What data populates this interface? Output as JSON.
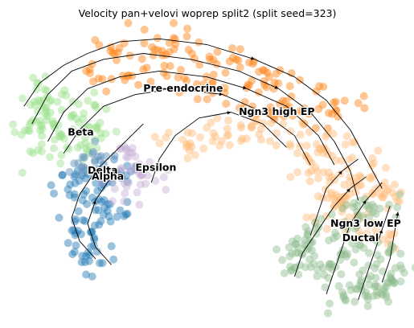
{
  "chart_data": {
    "type": "scatter",
    "title": "Velocity pan+velovi woprep split2 (split seed=323)",
    "xlabel": "",
    "ylabel": "",
    "axes_visible": false,
    "grid": false,
    "legend": "on-data labels",
    "overlay": "velocity streamlines with arrowheads",
    "x_range": [
      0,
      100
    ],
    "y_range": [
      0,
      100
    ],
    "clusters": [
      {
        "label": "Pre-endocrine",
        "color": "#ff7f0e",
        "centers": [
          [
            30,
            93
          ],
          [
            42,
            91
          ],
          [
            55,
            88
          ],
          [
            65,
            82
          ],
          [
            48,
            80
          ],
          [
            58,
            74
          ],
          [
            70,
            72
          ],
          [
            38,
            85
          ],
          [
            25,
            84
          ],
          [
            80,
            70
          ]
        ],
        "spread": 6,
        "count": 160
      },
      {
        "label": "Ngn3 high EP",
        "color": "#ffbb78",
        "centers": [
          [
            62,
            65
          ],
          [
            72,
            62
          ],
          [
            80,
            58
          ],
          [
            88,
            52
          ],
          [
            90,
            44
          ],
          [
            82,
            48
          ],
          [
            52,
            62
          ],
          [
            42,
            58
          ],
          [
            95,
            40
          ],
          [
            75,
            52
          ]
        ],
        "spread": 5.5,
        "count": 150
      },
      {
        "label": "Beta",
        "color": "#aec7e8",
        "centers": [
          [
            2,
            0
          ],
          [
            0,
            0
          ]
        ],
        "spread": 0,
        "count": 0
      },
      {
        "label": "Beta",
        "color": "#98df8a",
        "centers": [
          [
            8,
            75
          ],
          [
            12,
            68
          ],
          [
            16,
            62
          ],
          [
            10,
            58
          ],
          [
            18,
            72
          ],
          [
            22,
            64
          ],
          [
            6,
            66
          ]
        ],
        "spread": 5,
        "count": 110
      },
      {
        "label": "Alpha",
        "color": "#1f77b4",
        "centers": [
          [
            16,
            45
          ],
          [
            20,
            40
          ],
          [
            24,
            48
          ],
          [
            18,
            30
          ],
          [
            22,
            25
          ],
          [
            26,
            36
          ],
          [
            20,
            18
          ],
          [
            28,
            50
          ]
        ],
        "spread": 4.5,
        "count": 110
      },
      {
        "label": "Delta",
        "color": "#5b8fb9",
        "centers": [
          [
            18,
            52
          ],
          [
            22,
            55
          ]
        ],
        "spread": 3,
        "count": 20
      },
      {
        "label": "Epsilon",
        "color": "#c5b0d5",
        "centers": [
          [
            32,
            50
          ],
          [
            36,
            46
          ],
          [
            30,
            56
          ],
          [
            28,
            42
          ]
        ],
        "spread": 3.5,
        "count": 40
      },
      {
        "label": "Ngn3 low EP",
        "color": "#ffbb78",
        "centers": [
          [
            80,
            34
          ],
          [
            88,
            30
          ],
          [
            95,
            28
          ],
          [
            84,
            40
          ]
        ],
        "spread": 4,
        "count": 50
      },
      {
        "label": "Ductal",
        "color": "#8fbc8f",
        "centers": [
          [
            74,
            24
          ],
          [
            80,
            16
          ],
          [
            88,
            12
          ],
          [
            94,
            22
          ],
          [
            86,
            24
          ],
          [
            78,
            30
          ],
          [
            92,
            8
          ],
          [
            84,
            6
          ],
          [
            96,
            14
          ],
          [
            72,
            18
          ],
          [
            88,
            34
          ],
          [
            92,
            40
          ]
        ],
        "spread": 4.5,
        "count": 180
      }
    ],
    "labels": [
      {
        "text": "Pre-endocrine",
        "x": 34,
        "y": 77
      },
      {
        "text": "Ngn3 high EP",
        "x": 58,
        "y": 69
      },
      {
        "text": "Beta",
        "x": 15,
        "y": 62
      },
      {
        "text": "Epsilon",
        "x": 32,
        "y": 50
      },
      {
        "text": "Delta",
        "x": 20,
        "y": 49
      },
      {
        "text": "Alpha",
        "x": 21,
        "y": 47
      },
      {
        "text": "Ngn3 low EP",
        "x": 81,
        "y": 31
      },
      {
        "text": "Ductal",
        "x": 84,
        "y": 26
      }
    ]
  }
}
